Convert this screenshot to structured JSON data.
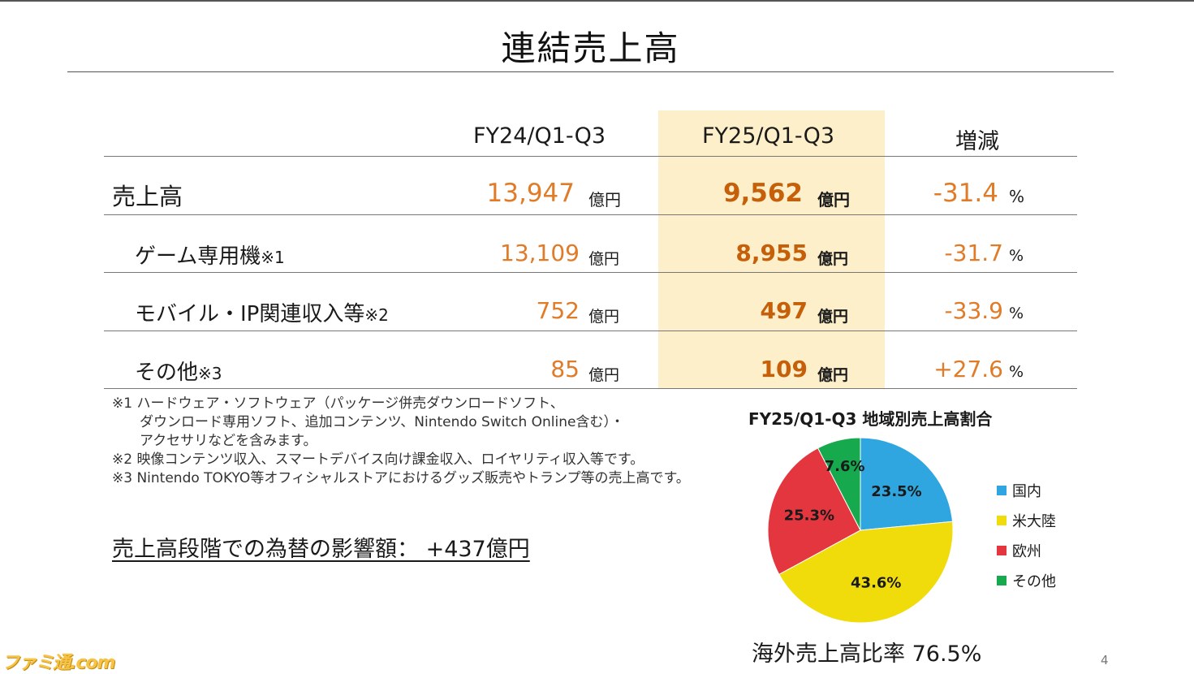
{
  "title": "連結売上高",
  "table": {
    "headers": [
      "FY24/Q1-Q3",
      "FY25/Q1-Q3",
      "増減"
    ],
    "rows": [
      {
        "label": "売上高",
        "note": "",
        "prev": "13,947",
        "curr": "9,562",
        "chg": "-31.4",
        "unit": "億円",
        "pct": "%"
      },
      {
        "label": "ゲーム専用機",
        "note": "※1",
        "prev": "13,109",
        "curr": "8,955",
        "chg": "-31.7",
        "unit": "億円",
        "pct": "%"
      },
      {
        "label": "モバイル・IP関連収入等",
        "note": "※2",
        "prev": "752",
        "curr": "497",
        "chg": "-33.9",
        "unit": "億円",
        "pct": "%"
      },
      {
        "label": "その他",
        "note": "※3",
        "prev": "85",
        "curr": "109",
        "chg": "+27.6",
        "unit": "億円",
        "pct": "%"
      }
    ]
  },
  "footnotes": [
    "※1 ハードウェア・ソフトウェア（パッケージ併売ダウンロードソフト、",
    "　　ダウンロード専用ソフト、追加コンテンツ、Nintendo Switch Online含む）・",
    "　　アクセサリなどを含みます。",
    "※2 映像コンテンツ収入、スマートデバイス向け課金収入、ロイヤリティ収入等です。",
    "※3 Nintendo TOKYO等オフィシャルストアにおけるグッズ販売やトランプ等の売上高です。"
  ],
  "fx_impact": "売上高段階での為替の影響額： +437億円",
  "chart_data": {
    "type": "pie",
    "title": "FY25/Q1-Q3 地域別売上高割合",
    "slices": [
      {
        "label": "国内",
        "value": 23.5,
        "text": "23.5%",
        "color": "#2fa6df"
      },
      {
        "label": "米大陸",
        "value": 43.6,
        "text": "43.6%",
        "color": "#f0dc0a"
      },
      {
        "label": "欧州",
        "value": 25.3,
        "text": "25.3%",
        "color": "#e4363e"
      },
      {
        "label": "その他",
        "value": 7.6,
        "text": "7.6%",
        "color": "#16a94e"
      }
    ],
    "legend": "right"
  },
  "overseas_ratio": "海外売上高比率 76.5%",
  "page_number": "4",
  "watermark": "ファミ通.com",
  "colors": {
    "value": "#e07b28",
    "highlight": "#fdefc9"
  }
}
